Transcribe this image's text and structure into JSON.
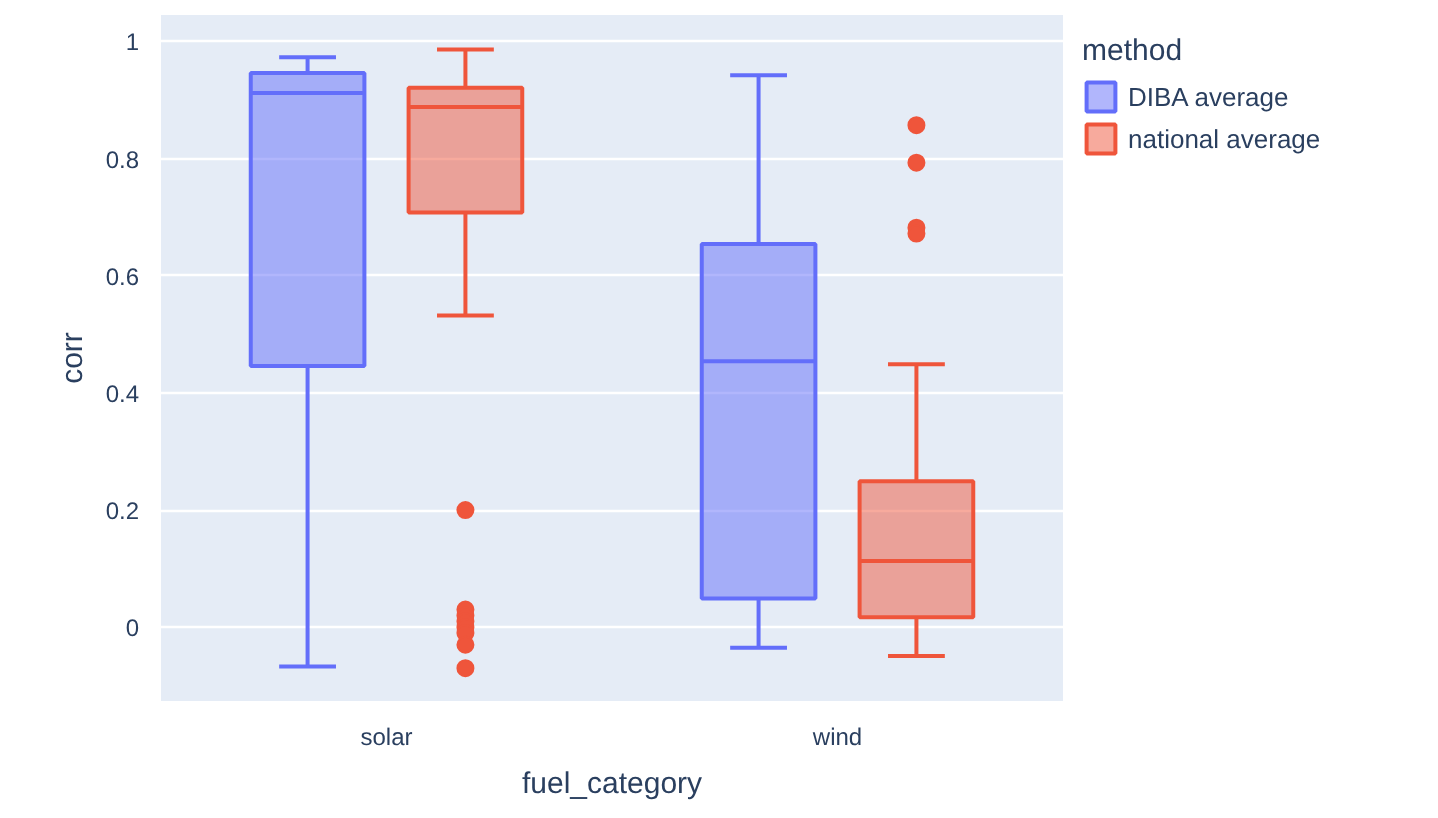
{
  "chart_data": {
    "type": "box",
    "xlabel": "fuel_category",
    "ylabel": "corr",
    "legend_title": "method",
    "categories": [
      "solar",
      "wind"
    ],
    "series": [
      {
        "name": "DIBA average",
        "color": "#636efa",
        "boxes": [
          {
            "low": -0.067,
            "q1": 0.446,
            "median": 0.912,
            "q3": 0.946,
            "high": 0.973
          },
          {
            "low": -0.035,
            "q1": 0.049,
            "median": 0.454,
            "q3": 0.654,
            "high": 0.942
          }
        ]
      },
      {
        "name": "national average",
        "color": "#ef553b",
        "boxes": [
          {
            "low": 0.532,
            "q1": 0.708,
            "median": 0.888,
            "q3": 0.921,
            "high": 0.986,
            "outliers": [
              0.2,
              0.03,
              0.02,
              0.01,
              0.0,
              -0.01,
              -0.03,
              -0.07
            ]
          },
          {
            "low": -0.049,
            "q1": 0.017,
            "median": 0.113,
            "q3": 0.249,
            "high": 0.449,
            "outliers": [
              0.857,
              0.793,
              0.682,
              0.672
            ]
          }
        ]
      }
    ],
    "ylim": [
      -0.126,
      1.045
    ],
    "yticks": [
      0,
      0.2,
      0.4,
      0.6,
      0.8,
      1
    ],
    "grid": "y",
    "legend": "top right"
  }
}
